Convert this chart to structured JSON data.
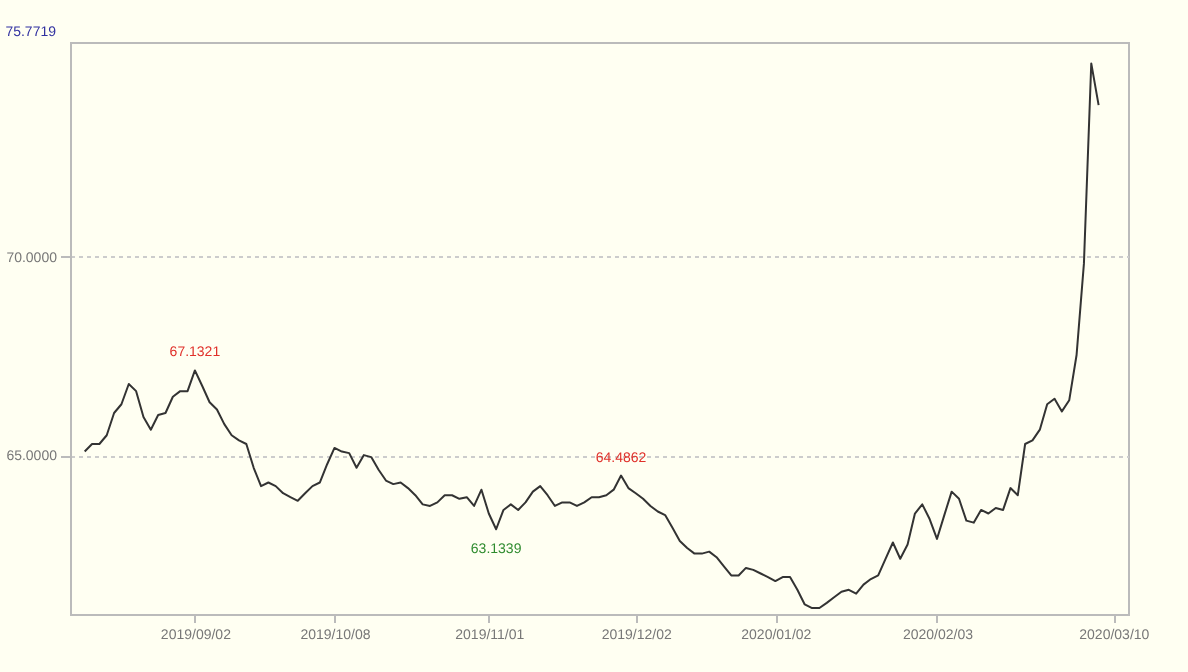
{
  "chart_data": {
    "type": "line",
    "annotations": [
      "75.7719",
      {
        "text": "67.1321",
        "y": 67.1321
      },
      {
        "text": "63.1339",
        "y": 63.1339
      },
      {
        "text": "64.4862",
        "y": 64.4862
      }
    ],
    "categories": [
      null,
      null,
      null,
      null,
      null,
      null,
      null,
      null,
      null,
      null,
      null,
      null,
      null,
      null,
      null,
      "2019/09/02",
      null,
      null,
      null,
      null,
      null,
      null,
      null,
      null,
      null,
      null,
      null,
      null,
      null,
      null,
      null,
      null,
      null,
      null,
      "2019/10/08",
      null,
      null,
      null,
      null,
      null,
      null,
      null,
      null,
      null,
      null,
      null,
      null,
      null,
      null,
      null,
      null,
      null,
      null,
      null,
      null,
      "2019/11/01",
      null,
      null,
      null,
      null,
      null,
      null,
      null,
      null,
      null,
      null,
      null,
      null,
      null,
      null,
      null,
      null,
      null,
      null,
      null,
      "2019/12/02",
      null,
      null,
      null,
      null,
      null,
      null,
      null,
      null,
      null,
      null,
      null,
      null,
      null,
      null,
      null,
      null,
      null,
      null,
      "2020/01/02",
      null,
      null,
      null,
      null,
      null,
      null,
      null,
      null,
      null,
      null,
      null,
      null,
      null,
      null,
      null,
      null,
      null,
      null,
      null,
      null,
      null,
      "2020/02/03",
      null,
      null,
      null,
      null,
      null,
      null,
      null,
      null,
      null,
      null,
      null,
      null,
      null,
      null,
      null,
      null,
      null,
      null,
      null,
      null,
      null,
      null,
      null,
      "2020/03/10"
    ],
    "series": [
      {
        "color": "#333333",
        "values": [
          65.09,
          65.28,
          65.28,
          65.5,
          66.06,
          66.28,
          66.79,
          66.61,
          65.96,
          65.64,
          66.01,
          66.06,
          66.47,
          66.61,
          66.61,
          67.1321,
          66.74,
          66.33,
          66.15,
          65.78,
          65.5,
          65.37,
          65.28,
          64.68,
          64.22,
          64.31,
          64.22,
          64.04,
          63.94,
          63.85,
          64.04,
          64.22,
          64.31,
          64.77,
          65.18,
          65.09,
          65.05,
          64.68,
          65.0,
          64.95,
          64.63,
          64.36,
          64.27,
          64.31,
          64.17,
          63.99,
          63.76,
          63.72,
          63.81,
          63.99,
          63.99,
          63.9,
          63.94,
          63.72,
          64.13,
          63.53,
          63.1339,
          63.62,
          63.76,
          63.62,
          63.81,
          64.08,
          64.22,
          63.99,
          63.72,
          63.81,
          63.81,
          63.72,
          63.81,
          63.94,
          63.94,
          63.99,
          64.13,
          64.4862,
          64.17,
          64.04,
          63.9,
          63.72,
          63.58,
          63.49,
          63.17,
          62.84,
          62.66,
          62.52,
          62.52,
          62.57,
          62.43,
          62.2,
          61.97,
          61.97,
          62.16,
          62.11,
          62.02,
          61.93,
          61.83,
          61.93,
          61.93,
          61.61,
          61.24,
          61.15,
          61.15,
          61.28,
          61.42,
          61.56,
          61.61,
          61.51,
          61.74,
          61.88,
          61.97,
          62.39,
          62.8,
          62.39,
          62.75,
          63.53,
          63.76,
          63.39,
          62.89,
          63.49,
          64.08,
          63.9,
          63.35,
          63.3,
          63.62,
          63.53,
          63.67,
          63.62,
          64.17,
          63.99,
          65.28,
          65.37,
          65.64,
          66.28,
          66.42,
          66.1,
          66.38,
          67.52,
          69.82,
          74.86,
          73.81,
          null,
          null
        ]
      }
    ],
    "ylim": [
      61,
      75.4
    ],
    "yticks": [
      {
        "value": 70,
        "label": "70.0000"
      },
      {
        "value": 65,
        "label": "65.0000"
      }
    ],
    "grid": "y",
    "line_style": "solid",
    "marker": "none"
  }
}
